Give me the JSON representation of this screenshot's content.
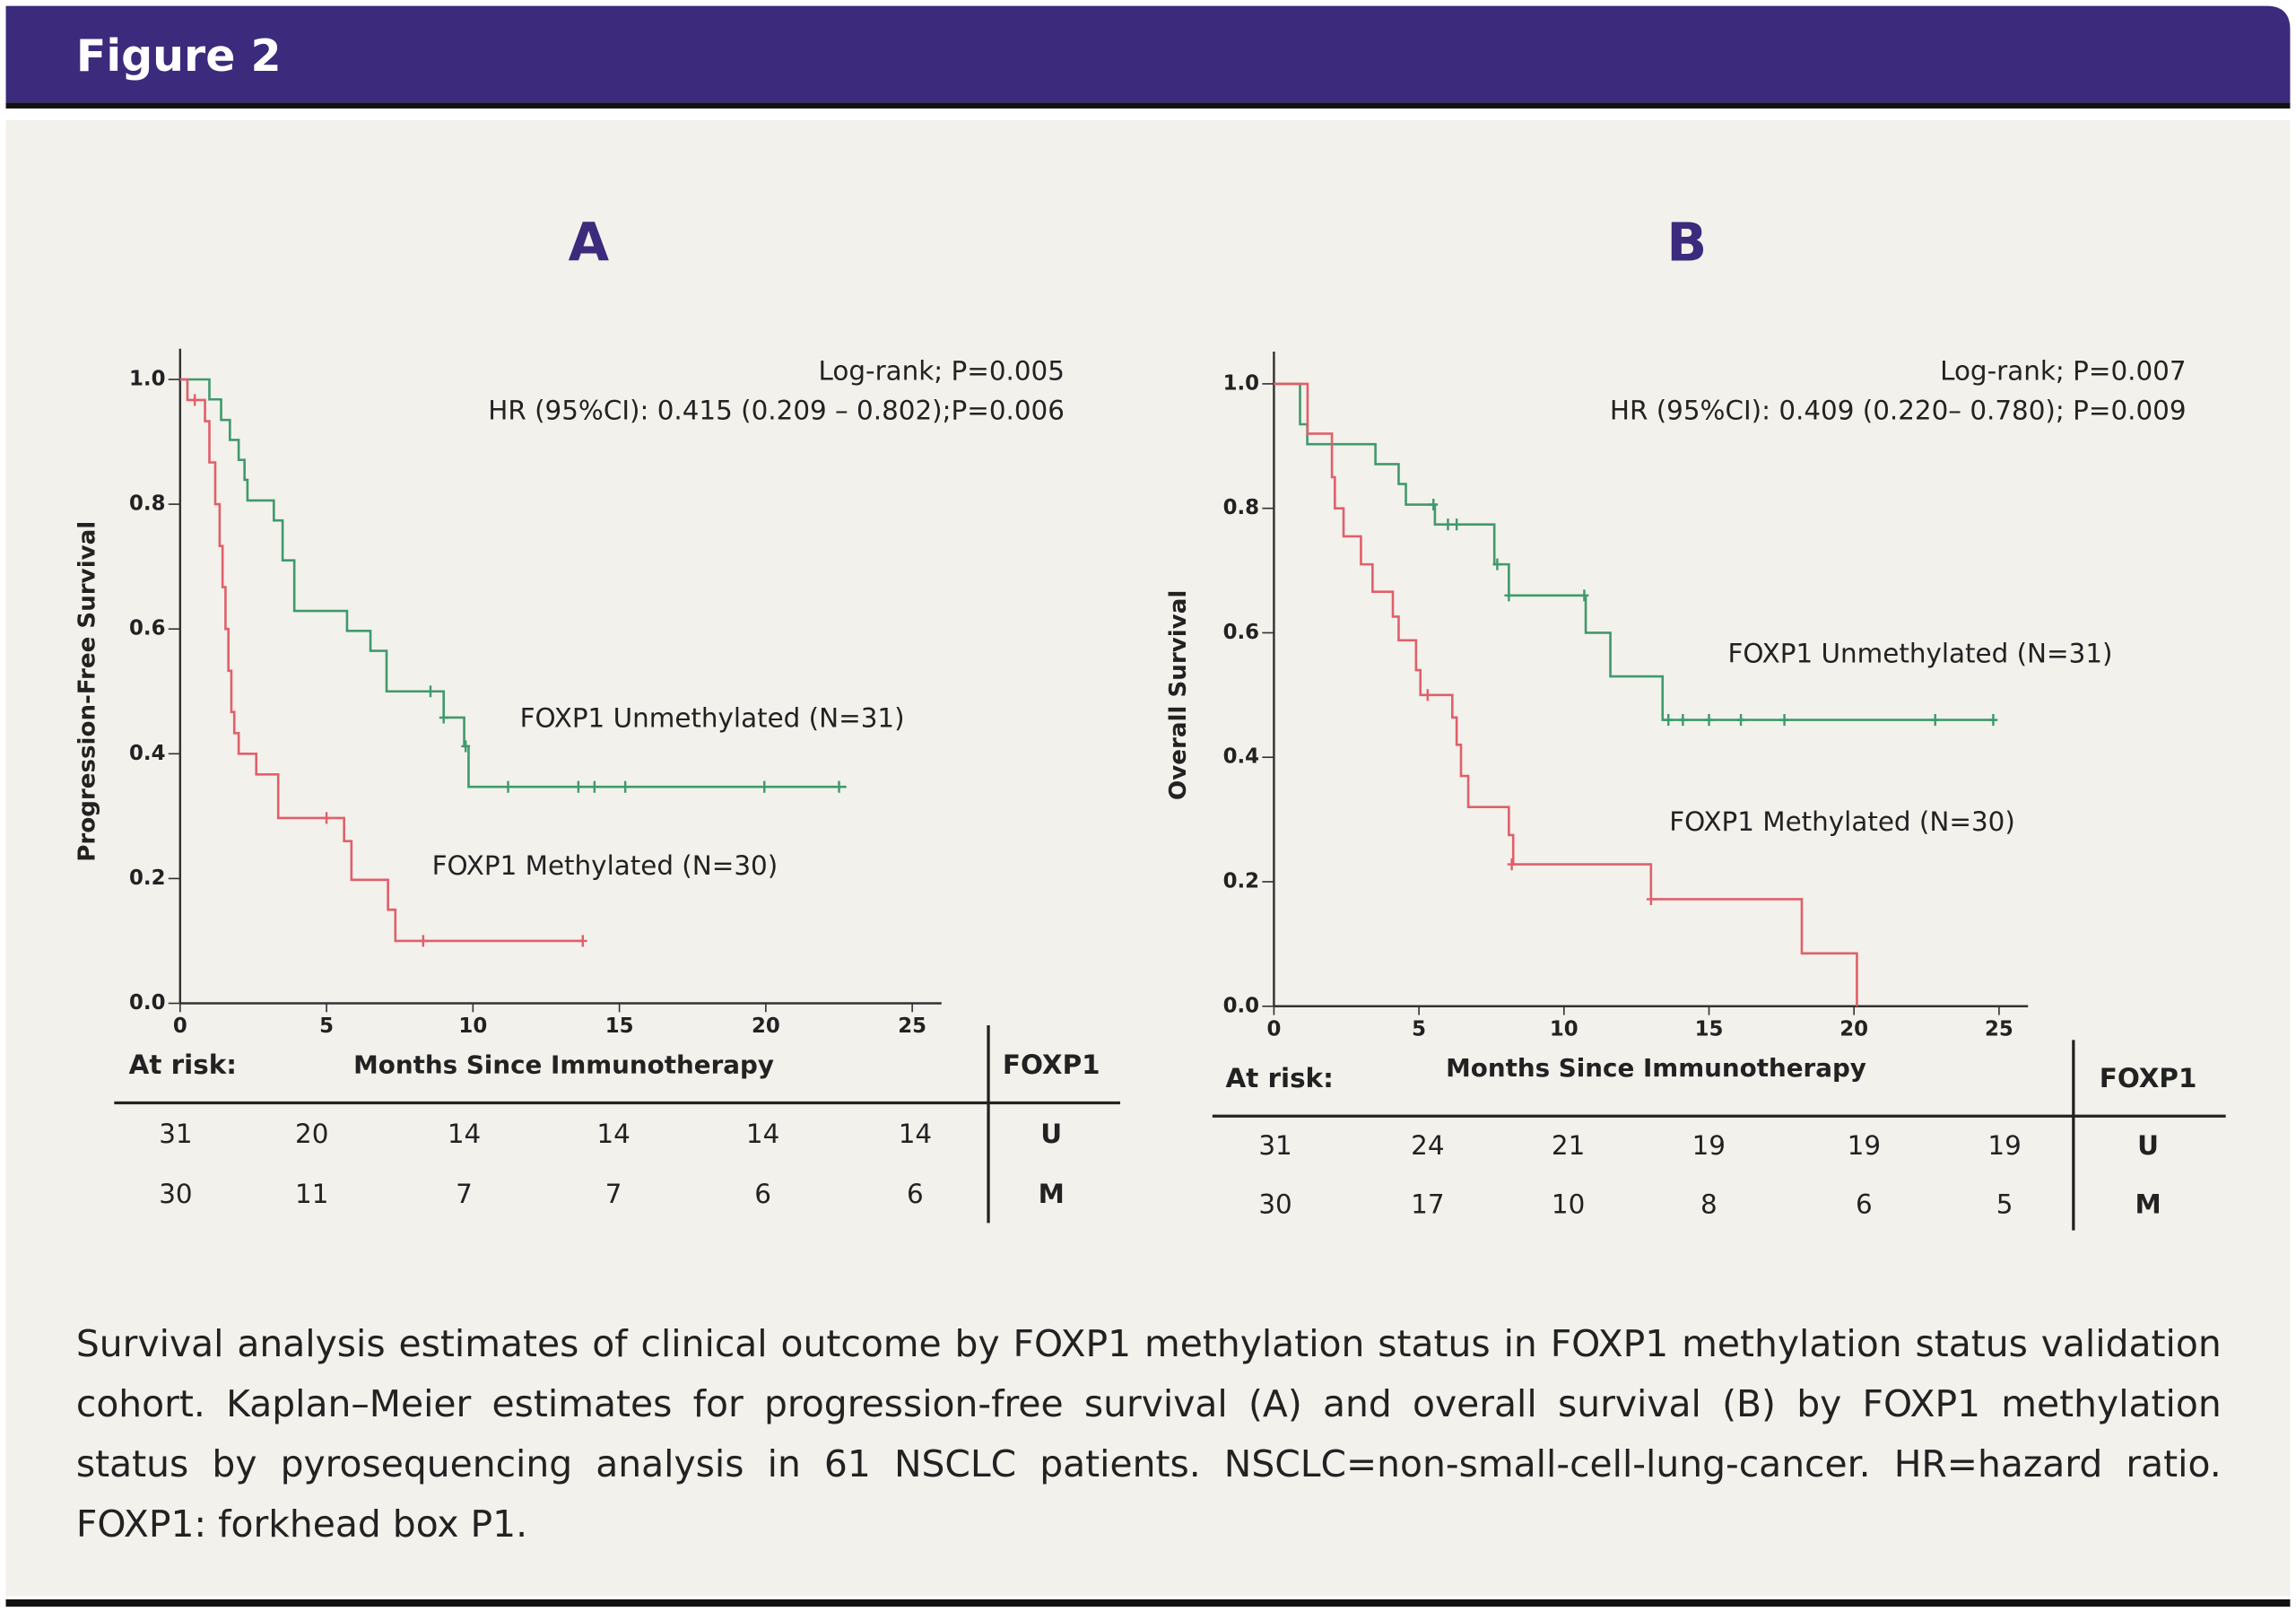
{
  "header": "Figure 2",
  "caption": "Survival analysis estimates of clinical outcome by FOXP1 methylation status in FOXP1 methylation status validation cohort. Kaplan–Meier estimates for progression-free survival (A) and overall survival (B) by FOXP1 methylation status by pyrosequencing analysis in 61 NSCLC patients. NSCLC=non-small-cell-lung-cancer. HR=hazard ratio. FOXP1: forkhead box P1.",
  "chart_data": [
    {
      "type": "step",
      "title": "A",
      "x_label": "Months Since Immunotherapy",
      "y_label": "Progression-Free Survival",
      "annotations": [
        "Log-rank; P=0.005",
        "HR (95%CI): 0.415 (0.209 – 0.802);P=0.006"
      ],
      "xlim": [
        0,
        26
      ],
      "ylim": [
        0,
        1
      ],
      "xticks": [
        0,
        5,
        10,
        15,
        20,
        25
      ],
      "yticks": [
        {
          "value": 0,
          "label": "0.0"
        },
        0.2,
        0.4,
        0.6,
        0.8,
        {
          "value": 1,
          "label": "1.0"
        }
      ],
      "series": [
        {
          "name": "FOXP1 Unmethylated (N=31)",
          "color": "#3f9a6c",
          "x": [
            0,
            1.0,
            1.4,
            1.7,
            2.0,
            2.2,
            2.3,
            3.2,
            3.5,
            3.9,
            5.7,
            6.5,
            7.05,
            9.0,
            9.7,
            9.85,
            22.75
          ],
          "values": [
            1,
            0.968,
            0.935,
            0.903,
            0.871,
            0.839,
            0.806,
            0.774,
            0.71,
            0.629,
            0.597,
            0.565,
            0.5,
            0.458,
            0.412,
            0.347,
            0.347
          ],
          "censor_x": [
            8.55,
            9.0,
            9.75,
            11.2,
            13.6,
            14.15,
            15.2,
            19.95,
            22.5
          ],
          "censor_y": [
            0.5,
            0.458,
            0.412,
            0.347,
            0.347,
            0.347,
            0.347,
            0.347,
            0.347
          ]
        },
        {
          "name": "FOXP1 Methylated (N=30)",
          "color": "#e0606a",
          "x": [
            0,
            0.25,
            0.85,
            1.0,
            1.2,
            1.35,
            1.45,
            1.55,
            1.65,
            1.75,
            1.85,
            2.0,
            2.6,
            3.35,
            5.6,
            5.85,
            7.1,
            7.35,
            13.75
          ],
          "values": [
            1,
            0.967,
            0.933,
            0.867,
            0.8,
            0.733,
            0.667,
            0.6,
            0.533,
            0.467,
            0.433,
            0.4,
            0.367,
            0.297,
            0.26,
            0.198,
            0.15,
            0.1,
            0.1
          ],
          "censor_x": [
            0.5,
            5.0,
            8.3,
            13.75
          ],
          "censor_y": [
            0.967,
            0.297,
            0.1,
            0.1
          ]
        }
      ],
      "at_risk": {
        "title": "At risk:",
        "header": "FOXP1",
        "rows": [
          {
            "label": "U",
            "values": [
              31,
              20,
              14,
              14,
              14,
              14
            ]
          },
          {
            "label": "M",
            "values": [
              30,
              11,
              7,
              7,
              6,
              6
            ]
          }
        ]
      }
    },
    {
      "type": "step",
      "title": "B",
      "x_label": "Months Since Immunotherapy",
      "y_label": "Overall Survival",
      "annotations": [
        "Log-rank; P=0.007",
        "HR (95%CI): 0.409 (0.220– 0.780); P=0.009"
      ],
      "xlim": [
        0,
        26
      ],
      "ylim": [
        0,
        1
      ],
      "xticks": [
        0,
        5,
        10,
        15,
        20,
        25
      ],
      "yticks": [
        {
          "value": 0,
          "label": "0.0"
        },
        0.2,
        0.4,
        0.6,
        0.8,
        {
          "value": 1,
          "label": "1.0"
        }
      ],
      "series": [
        {
          "name": "FOXP1 Unmethylated (N=31)",
          "color": "#3f9a6c",
          "x": [
            0,
            0.9,
            1.15,
            3.5,
            4.3,
            4.55,
            5.55,
            7.6,
            8.1,
            10.75,
            11.6,
            13.4,
            24.85
          ],
          "values": [
            1,
            0.935,
            0.903,
            0.871,
            0.839,
            0.806,
            0.774,
            0.71,
            0.66,
            0.6,
            0.53,
            0.46,
            0.46
          ],
          "censor_x": [
            5.5,
            6.0,
            6.3,
            7.7,
            8.1,
            10.7,
            13.6,
            14.1,
            15.0,
            16.1,
            17.6,
            22.8,
            24.8
          ],
          "censor_y": [
            0.806,
            0.774,
            0.774,
            0.71,
            0.66,
            0.66,
            0.46,
            0.46,
            0.46,
            0.46,
            0.46,
            0.46,
            0.46
          ]
        },
        {
          "name": "FOXP1 Methylated (N=30)",
          "color": "#e0606a",
          "x": [
            0,
            1.16,
            2.0,
            2.1,
            2.4,
            3.0,
            3.4,
            4.1,
            4.3,
            4.9,
            5.05,
            6.15,
            6.3,
            6.45,
            6.7,
            8.1,
            8.25,
            13.0,
            18.2,
            20.1
          ],
          "values": [
            1,
            0.92,
            0.85,
            0.8,
            0.755,
            0.71,
            0.666,
            0.626,
            0.588,
            0.54,
            0.5,
            0.464,
            0.42,
            0.37,
            0.32,
            0.275,
            0.228,
            0.172,
            0.085,
            0
          ],
          "censor_x": [
            5.3,
            8.2,
            13.0
          ],
          "censor_y": [
            0.5,
            0.228,
            0.172
          ]
        }
      ],
      "at_risk": {
        "title": "At risk:",
        "header": "FOXP1",
        "rows": [
          {
            "label": "U",
            "values": [
              31,
              24,
              21,
              19,
              19,
              19
            ]
          },
          {
            "label": "M",
            "values": [
              30,
              17,
              10,
              8,
              6,
              5
            ]
          }
        ]
      }
    }
  ]
}
